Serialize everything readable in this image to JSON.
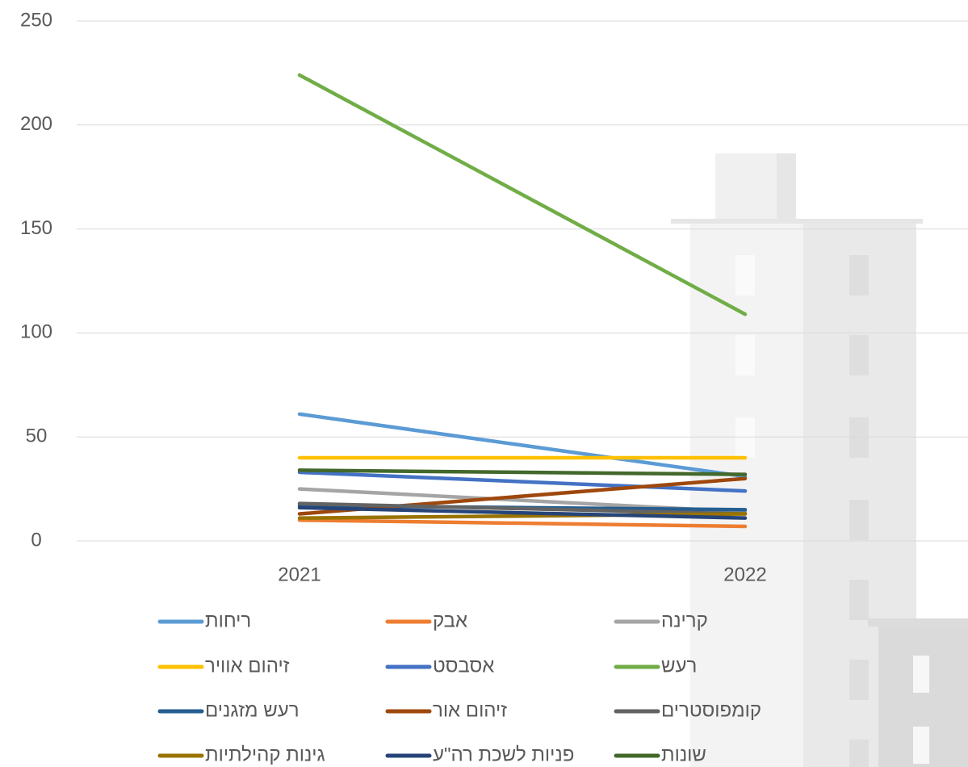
{
  "chart_data": {
    "type": "line",
    "categories": [
      "2021",
      "2022"
    ],
    "ylim": [
      0,
      250
    ],
    "yticks": [
      0,
      50,
      100,
      150,
      200,
      250
    ],
    "grid": true,
    "series": [
      {
        "name": "ריחות",
        "color": "#5b9bd5",
        "values": [
          61,
          31
        ]
      },
      {
        "name": "אבק",
        "color": "#ed7d31",
        "values": [
          10,
          7
        ]
      },
      {
        "name": "קרינה",
        "color": "#a5a5a5",
        "values": [
          25,
          14
        ]
      },
      {
        "name": "זיהום אוויר",
        "color": "#ffc000",
        "values": [
          40,
          40
        ]
      },
      {
        "name": "אסבסט",
        "color": "#4472c4",
        "values": [
          33,
          24
        ]
      },
      {
        "name": "רעש",
        "color": "#70ad47",
        "values": [
          224,
          109
        ]
      },
      {
        "name": "רעש מזגנים",
        "color": "#255e91",
        "values": [
          17,
          15
        ]
      },
      {
        "name": "זיהום אור",
        "color": "#9e480e",
        "values": [
          13,
          30
        ]
      },
      {
        "name": "קומפוסטרים",
        "color": "#636363",
        "values": [
          18,
          13
        ]
      },
      {
        "name": "גינות קהילתיות",
        "color": "#997300",
        "values": [
          11,
          13
        ]
      },
      {
        "name": "פניות לשכת רה\"ע",
        "color": "#264478",
        "values": [
          16,
          11
        ]
      },
      {
        "name": "שונות",
        "color": "#43682b",
        "values": [
          34,
          32
        ]
      }
    ]
  }
}
